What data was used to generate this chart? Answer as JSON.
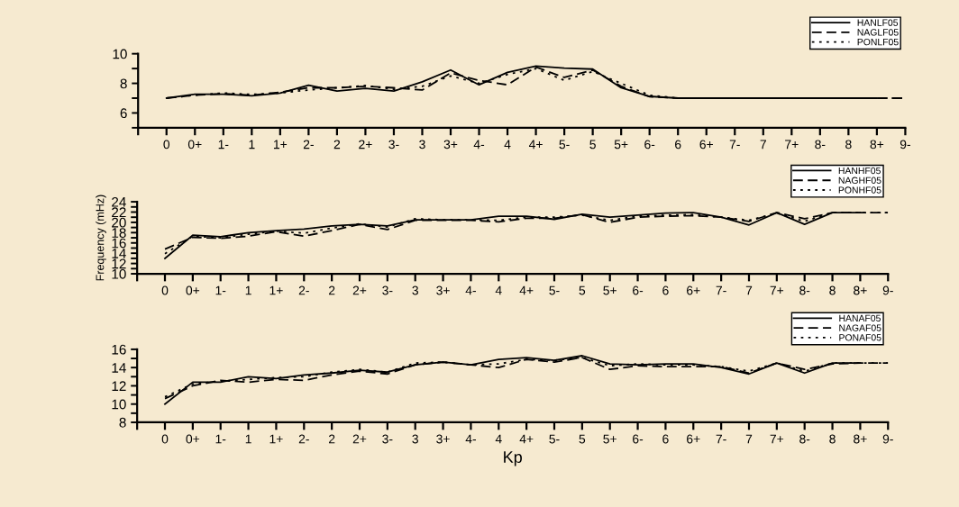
{
  "chart_data": [
    {
      "type": "line",
      "categories": [
        "0",
        "0+",
        "1-",
        "1",
        "1+",
        "2-",
        "2",
        "2+",
        "3-",
        "3",
        "3+",
        "4-",
        "4",
        "4+",
        "5-",
        "5",
        "5+",
        "6-",
        "6",
        "6+",
        "7-",
        "7",
        "7+",
        "8-",
        "8",
        "8+",
        "9-"
      ],
      "ylim": [
        5,
        10
      ],
      "yticks": [
        {
          "value": 5,
          "label": null
        },
        6,
        {
          "value": 7,
          "label": null
        },
        8,
        {
          "value": 9,
          "label": null
        },
        10
      ],
      "legend": "top right",
      "grid": false,
      "marker": "none",
      "series": [
        {
          "name": "HANLF05",
          "color": "#000000",
          "line_style": "solid",
          "values": [
            7.0,
            7.27,
            7.27,
            7.16,
            7.34,
            7.88,
            7.48,
            7.66,
            7.48,
            8.1,
            8.9,
            7.9,
            8.74,
            9.17,
            9.03,
            8.96,
            7.7,
            7.12,
            7.0,
            7.0,
            7.0,
            7.0,
            7.0,
            7.0,
            7.0,
            7.0,
            null
          ]
        },
        {
          "name": "NAGLF05",
          "color": "#000000",
          "line_style": "dashed",
          "values": [
            7.0,
            7.2,
            7.3,
            7.2,
            7.4,
            7.7,
            7.7,
            7.8,
            7.7,
            7.55,
            8.7,
            8.2,
            7.9,
            9.1,
            8.4,
            8.9,
            7.8,
            7.1,
            7.0,
            7.0,
            7.0,
            7.0,
            7.0,
            7.0,
            7.0,
            7.0,
            7.0
          ]
        },
        {
          "name": "PONLF05",
          "color": "#000000",
          "line_style": "dotted",
          "values": [
            7.0,
            7.2,
            7.35,
            7.25,
            7.35,
            7.55,
            7.7,
            7.85,
            7.6,
            7.8,
            8.5,
            8.0,
            8.6,
            9.0,
            8.2,
            8.8,
            8.0,
            7.2,
            7.0,
            7.0,
            7.0,
            7.0,
            7.0,
            7.0,
            7.0,
            7.0,
            7.0
          ]
        }
      ]
    },
    {
      "type": "line",
      "categories": [
        "0",
        "0+",
        "1-",
        "1",
        "1+",
        "2-",
        "2",
        "2+",
        "3-",
        "3",
        "3+",
        "4-",
        "4",
        "4+",
        "5-",
        "5",
        "5+",
        "6-",
        "6",
        "6+",
        "7-",
        "7",
        "7+",
        "8-",
        "8",
        "8+",
        "9-"
      ],
      "ylabel": "Frequency (mHz)",
      "ylim": [
        10,
        24
      ],
      "yticks": [
        10,
        {
          "value": 11,
          "label": null
        },
        12,
        {
          "value": 13,
          "label": null
        },
        14,
        {
          "value": 15,
          "label": null
        },
        16,
        {
          "value": 17,
          "label": null
        },
        18,
        {
          "value": 19,
          "label": null
        },
        20,
        {
          "value": 21,
          "label": null
        },
        22,
        {
          "value": 23,
          "label": null
        },
        24
      ],
      "legend": "top right",
      "grid": false,
      "marker": "none",
      "series": [
        {
          "name": "HANHF05",
          "color": "#000000",
          "line_style": "solid",
          "values": [
            13.0,
            17.5,
            17.2,
            18.0,
            18.4,
            18.7,
            19.3,
            19.6,
            19.3,
            20.5,
            20.5,
            20.5,
            21.2,
            21.2,
            20.6,
            21.6,
            21.0,
            21.4,
            21.8,
            21.9,
            21.0,
            19.5,
            21.9,
            19.6,
            21.9,
            21.9,
            null
          ]
        },
        {
          "name": "NAGHF05",
          "color": "#000000",
          "line_style": "dashed",
          "values": [
            14.8,
            17.1,
            16.9,
            17.3,
            18.2,
            17.3,
            18.4,
            19.6,
            18.6,
            20.4,
            20.4,
            20.4,
            20.1,
            20.8,
            20.8,
            21.5,
            20.0,
            21.0,
            21.2,
            21.3,
            21.0,
            20.2,
            21.9,
            20.7,
            21.9,
            21.9,
            21.9
          ]
        },
        {
          "name": "PONHF05",
          "color": "#000000",
          "line_style": "dotted",
          "values": [
            13.9,
            17.3,
            17.0,
            17.7,
            18.3,
            17.9,
            18.9,
            19.7,
            19.1,
            20.7,
            20.5,
            20.5,
            20.4,
            21.0,
            21.0,
            21.4,
            20.4,
            21.2,
            21.4,
            21.5,
            21.0,
            20.4,
            21.8,
            20.2,
            21.9,
            21.9,
            21.9
          ]
        }
      ]
    },
    {
      "type": "line",
      "categories": [
        "0",
        "0+",
        "1-",
        "1",
        "1+",
        "2-",
        "2",
        "2+",
        "3-",
        "3",
        "3+",
        "4-",
        "4",
        "4+",
        "5-",
        "5",
        "5+",
        "6-",
        "6",
        "6+",
        "7-",
        "7",
        "7+",
        "8-",
        "8",
        "8+",
        "9-"
      ],
      "xlabel": "Kp",
      "ylim": [
        8,
        16
      ],
      "yticks": [
        8,
        {
          "value": 9,
          "label": null
        },
        10,
        {
          "value": 11,
          "label": null
        },
        12,
        {
          "value": 13,
          "label": null
        },
        14,
        {
          "value": 15,
          "label": null
        },
        16
      ],
      "legend": "top right",
      "grid": false,
      "marker": "none",
      "series": [
        {
          "name": "HANAF05",
          "color": "#000000",
          "line_style": "solid",
          "values": [
            10.0,
            12.4,
            12.4,
            13.0,
            12.8,
            13.2,
            13.4,
            13.7,
            13.5,
            14.3,
            14.6,
            14.3,
            14.9,
            15.1,
            14.8,
            15.3,
            14.4,
            14.3,
            14.4,
            14.4,
            14.0,
            13.3,
            14.5,
            13.4,
            14.5,
            14.5,
            null
          ]
        },
        {
          "name": "NAGAF05",
          "color": "#000000",
          "line_style": "dashed",
          "values": [
            10.6,
            12.0,
            12.6,
            12.4,
            12.7,
            12.6,
            13.2,
            13.6,
            13.3,
            14.3,
            14.6,
            14.3,
            14.0,
            14.9,
            14.6,
            15.1,
            13.8,
            14.2,
            14.1,
            14.1,
            14.1,
            13.4,
            14.5,
            13.8,
            14.4,
            14.5,
            14.5
          ]
        },
        {
          "name": "PONAF05",
          "color": "#000000",
          "line_style": "dotted",
          "values": [
            10.8,
            12.2,
            12.5,
            12.7,
            12.9,
            13.0,
            13.5,
            13.8,
            13.5,
            14.5,
            14.6,
            14.3,
            14.4,
            14.9,
            14.8,
            15.1,
            14.2,
            14.4,
            14.3,
            14.3,
            14.1,
            13.6,
            14.5,
            13.6,
            14.5,
            14.5,
            14.5
          ]
        }
      ]
    }
  ]
}
